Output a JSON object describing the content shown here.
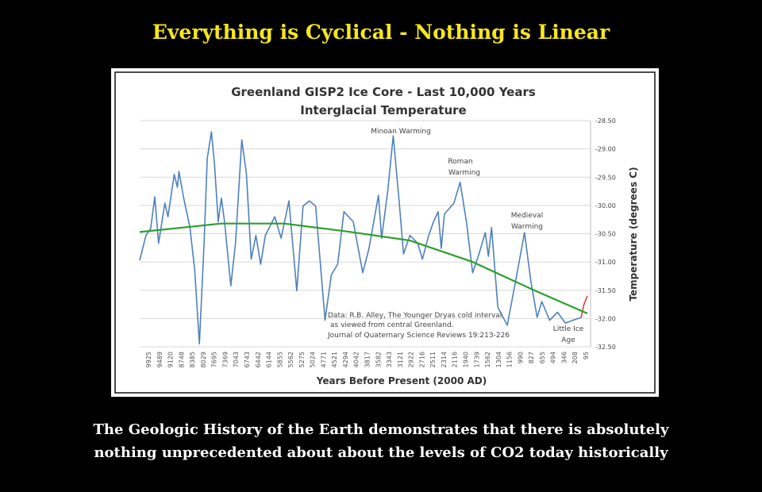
{
  "headline": "Everything is Cyclical - Nothing is Linear",
  "caption_lines": [
    "The Geologic History of the Earth demonstrates that there is absolutely",
    "nothing unprecedented about about the levels of CO2 today historically"
  ],
  "colors": {
    "headline": "#f5e61a",
    "series": "#4f81bd",
    "trend": "#2ca02c",
    "recent": "#e0403a",
    "background": "#000000"
  },
  "chart_data": {
    "type": "line",
    "title": "Greenland GISP2 Ice Core - Last 10,000 Years",
    "subtitle": "Interglacial Temperature",
    "xlabel": "Years Before Present (2000 AD)",
    "ylabel": "Temperature (degrees C)",
    "xlim": [
      9925,
      95
    ],
    "ylim": [
      -32.5,
      -28.5
    ],
    "grid": true,
    "legend": "none",
    "x_tick_labels": [
      "9925",
      "9489",
      "9120",
      "8748",
      "8385",
      "8029",
      "7695",
      "7369",
      "7043",
      "6743",
      "6442",
      "6144",
      "5855",
      "5562",
      "5275",
      "5024",
      "4771",
      "4521",
      "4294",
      "4042",
      "3817",
      "3582",
      "3343",
      "3121",
      "2922",
      "2716",
      "2511",
      "2314",
      "2116",
      "1940",
      "1739",
      "1562",
      "1304",
      "1156",
      "990",
      "827",
      "655",
      "494",
      "346",
      "208",
      "95"
    ],
    "y_tick_labels": [
      "-28.50",
      "-29.00",
      "-29.50",
      "-30.00",
      "-30.50",
      "-31.00",
      "-31.50",
      "-32.00",
      "-32.50"
    ],
    "y_ticks": [
      -28.5,
      -29,
      -29.5,
      -30,
      -30.5,
      -31,
      -31.5,
      -32,
      -32.5
    ],
    "series": [
      {
        "points": [
          [
            9925,
            -30.97
          ],
          [
            9787,
            -30.53
          ],
          [
            9684,
            -30.41
          ],
          [
            9594,
            -29.85
          ],
          [
            9511,
            -30.67
          ],
          [
            9373,
            -29.96
          ],
          [
            9304,
            -30.2
          ],
          [
            9166,
            -29.45
          ],
          [
            9097,
            -29.68
          ],
          [
            9063,
            -29.4
          ],
          [
            8959,
            -29.87
          ],
          [
            8821,
            -30.39
          ],
          [
            8718,
            -31.14
          ],
          [
            8614,
            -32.45
          ],
          [
            8511,
            -30.67
          ],
          [
            8442,
            -29.17
          ],
          [
            8352,
            -28.7
          ],
          [
            8283,
            -29.26
          ],
          [
            8201,
            -30.29
          ],
          [
            8132,
            -29.87
          ],
          [
            8062,
            -30.29
          ],
          [
            7925,
            -31.42
          ],
          [
            7821,
            -30.67
          ],
          [
            7683,
            -28.84
          ],
          [
            7580,
            -29.45
          ],
          [
            7476,
            -30.95
          ],
          [
            7373,
            -30.53
          ],
          [
            7269,
            -31.04
          ],
          [
            7166,
            -30.53
          ],
          [
            6959,
            -30.2
          ],
          [
            6821,
            -30.58
          ],
          [
            6648,
            -29.92
          ],
          [
            6476,
            -31.51
          ],
          [
            6338,
            -30.01
          ],
          [
            6200,
            -29.92
          ],
          [
            6062,
            -30.01
          ],
          [
            5855,
            -32.03
          ],
          [
            5717,
            -31.23
          ],
          [
            5579,
            -31.04
          ],
          [
            5441,
            -30.11
          ],
          [
            5234,
            -30.29
          ],
          [
            5027,
            -31.19
          ],
          [
            4889,
            -30.76
          ],
          [
            4682,
            -29.82
          ],
          [
            4613,
            -30.58
          ],
          [
            4476,
            -29.73
          ],
          [
            4358,
            -28.77
          ],
          [
            4234,
            -29.87
          ],
          [
            4131,
            -30.86
          ],
          [
            3993,
            -30.53
          ],
          [
            3820,
            -30.67
          ],
          [
            3717,
            -30.95
          ],
          [
            3579,
            -30.53
          ],
          [
            3475,
            -30.29
          ],
          [
            3372,
            -30.11
          ],
          [
            3303,
            -30.76
          ],
          [
            3234,
            -30.15
          ],
          [
            3027,
            -29.96
          ],
          [
            2889,
            -29.59
          ],
          [
            2751,
            -30.29
          ],
          [
            2613,
            -31.19
          ],
          [
            2475,
            -30.86
          ],
          [
            2337,
            -30.48
          ],
          [
            2268,
            -30.9
          ],
          [
            2199,
            -30.39
          ],
          [
            2061,
            -31.8
          ],
          [
            1854,
            -32.12
          ],
          [
            1647,
            -31.23
          ],
          [
            1475,
            -30.48
          ],
          [
            1337,
            -31.33
          ],
          [
            1199,
            -31.98
          ],
          [
            1096,
            -31.7
          ],
          [
            923,
            -32.03
          ],
          [
            751,
            -31.89
          ],
          [
            578,
            -32.08
          ],
          [
            406,
            -32.03
          ],
          [
            233,
            -31.98
          ]
        ]
      },
      {
        "points": [
          [
            233,
            -31.98
          ],
          [
            170,
            -31.75
          ],
          [
            95,
            -31.6
          ]
        ]
      },
      {
        "points": [
          [
            9925,
            -30.47
          ],
          [
            8132,
            -30.32
          ],
          [
            6752,
            -30.32
          ],
          [
            5372,
            -30.46
          ],
          [
            3993,
            -30.62
          ],
          [
            2613,
            -31.0
          ],
          [
            1234,
            -31.51
          ],
          [
            95,
            -31.91
          ]
        ]
      }
    ],
    "annotations": {
      "minoan": "Minoan Warming",
      "roman_1": "Roman",
      "roman_2": "Warming",
      "medieval_1": "Medieval",
      "medieval_2": "Warming",
      "lia_1": "Little Ice",
      "lia_2": "Age",
      "source_1": "Data: R.B. Alley,  The Younger Dryas cold interval",
      "source_2": "as viewed from central Greenland.",
      "source_3": "Journal of Quaternary  Science Reviews 19:213-226"
    }
  }
}
